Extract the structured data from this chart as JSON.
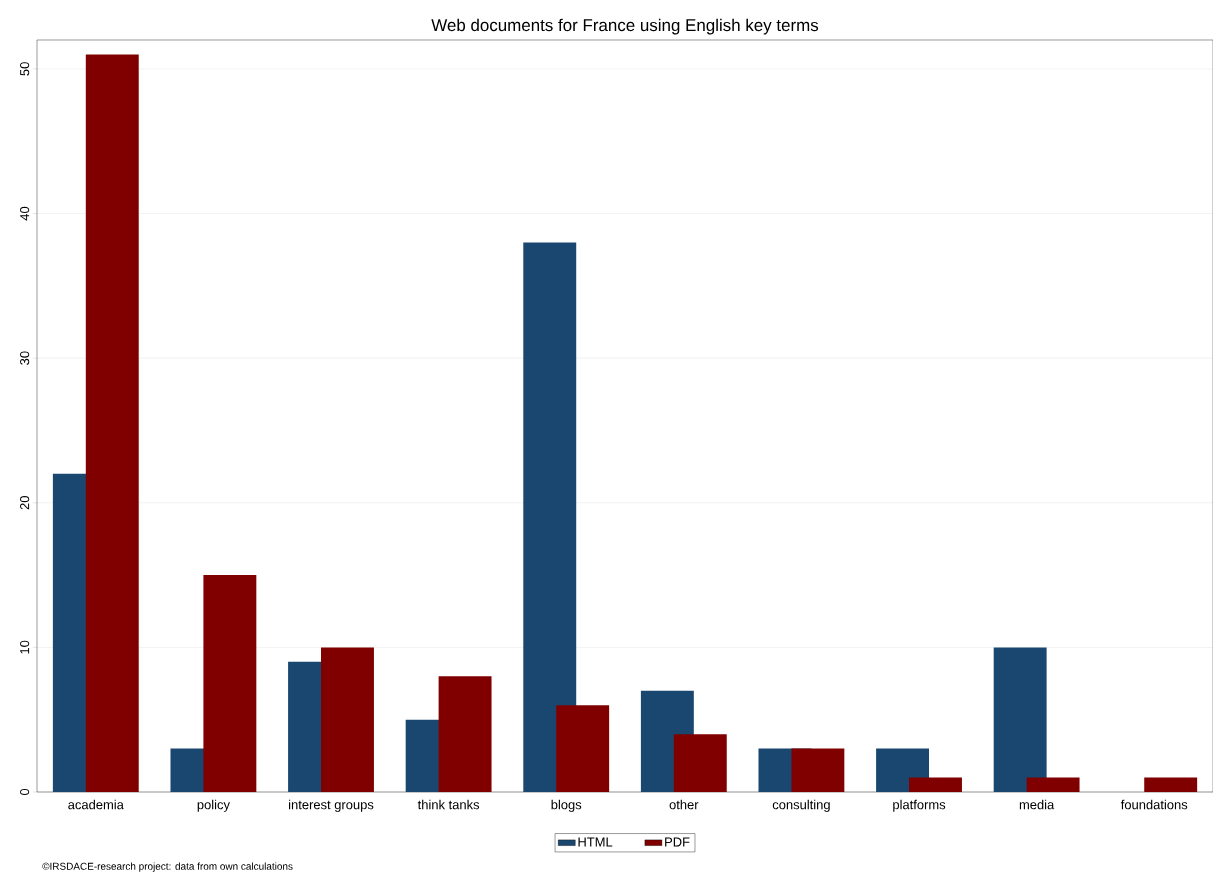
{
  "chart_data": {
    "type": "bar",
    "title": "Web documents for France using English key terms",
    "categories": [
      "academia",
      "policy",
      "interest groups",
      "think tanks",
      "blogs",
      "other",
      "consulting",
      "platforms",
      "media",
      "foundations"
    ],
    "series": [
      {
        "name": "HTML",
        "color": "#1a476f",
        "values": [
          22,
          3,
          9,
          5,
          38,
          7,
          3,
          3,
          10,
          0
        ]
      },
      {
        "name": "PDF",
        "color": "#800000",
        "values": [
          51,
          15,
          10,
          8,
          6,
          4,
          3,
          1,
          1,
          1
        ]
      }
    ],
    "ylim": [
      0,
      52
    ],
    "yticks": [
      0,
      10,
      20,
      30,
      40,
      50
    ],
    "grid": "y",
    "legend": "bottom",
    "annotations": [
      "©IRSDACE-research project: data from own calculations"
    ]
  }
}
